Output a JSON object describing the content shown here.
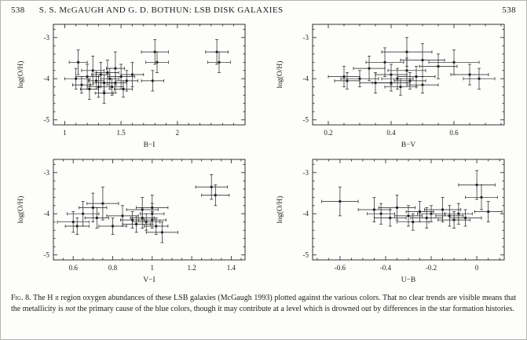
{
  "colors": {
    "ink": "#1c1c1c",
    "paper": "#fdfdfb"
  },
  "header": {
    "page_number_left": "538",
    "title": "S. S. McGAUGH AND G. D. BOTHUN: LSB DISK GALAXIES",
    "page_number_right": "538"
  },
  "caption": {
    "fig_label": "Fig. 8.",
    "part1": " The H ",
    "hii": "ii",
    "part2": " region oxygen abundances of these LSB galaxies (McGaugh 1993) plotted against the various colors. That no clear trends are visible means that the metallicity is ",
    "italic_word": "not",
    "part3": " the primary cause of the blue colors, though it may contribute at a level which is drowned out by differences in the star formation histories."
  },
  "chart_data": [
    {
      "type": "scatter",
      "xlabel": "B−I",
      "ylabel": "log(O/H)",
      "xlim": [
        0.9,
        2.6
      ],
      "ylim": [
        -5.12,
        -2.68
      ],
      "xticks": [
        1,
        1.5,
        2
      ],
      "xtick_labels": [
        "1",
        "1.5",
        "2"
      ],
      "yticks": [
        -5,
        -4,
        -3
      ],
      "ytick_labels": [
        "-5",
        "-4",
        "-3"
      ],
      "xminor_step": 0.1,
      "yminor_step": 0.2,
      "grid": false,
      "points": [
        [
          1.12,
          -3.6,
          0.08,
          0.3
        ],
        [
          1.1,
          -4.0,
          0.1,
          0.25
        ],
        [
          1.15,
          -4.15,
          0.08,
          0.2
        ],
        [
          1.2,
          -3.95,
          0.1,
          0.3
        ],
        [
          1.22,
          -4.25,
          0.08,
          0.25
        ],
        [
          1.25,
          -3.8,
          0.1,
          0.35
        ],
        [
          1.28,
          -4.05,
          0.07,
          0.2
        ],
        [
          1.3,
          -4.2,
          0.1,
          0.25
        ],
        [
          1.32,
          -3.9,
          0.08,
          0.3
        ],
        [
          1.35,
          -4.1,
          0.1,
          0.2
        ],
        [
          1.35,
          -4.35,
          0.08,
          0.25
        ],
        [
          1.38,
          -3.85,
          0.1,
          0.3
        ],
        [
          1.4,
          -4.0,
          0.08,
          0.25
        ],
        [
          1.42,
          -4.2,
          0.1,
          0.2
        ],
        [
          1.45,
          -3.75,
          0.08,
          0.4
        ],
        [
          1.45,
          -4.1,
          0.1,
          0.25
        ],
        [
          1.5,
          -3.95,
          0.12,
          0.3
        ],
        [
          1.52,
          -4.25,
          0.08,
          0.2
        ],
        [
          1.55,
          -4.05,
          0.1,
          0.25
        ],
        [
          1.6,
          -3.9,
          0.1,
          0.3
        ],
        [
          1.8,
          -3.35,
          0.12,
          0.3
        ],
        [
          1.82,
          -3.6,
          0.1,
          0.25
        ],
        [
          1.78,
          -4.05,
          0.1,
          0.25
        ],
        [
          2.35,
          -3.35,
          0.1,
          0.3
        ],
        [
          2.37,
          -3.6,
          0.1,
          0.25
        ]
      ]
    },
    {
      "type": "scatter",
      "xlabel": "B−V",
      "ylabel": "log(O/H)",
      "xlim": [
        0.15,
        0.76
      ],
      "ylim": [
        -5.12,
        -2.68
      ],
      "xticks": [
        0.2,
        0.4,
        0.6
      ],
      "xtick_labels": [
        "0.2",
        "0.4",
        "0.6"
      ],
      "yticks": [
        -5,
        -4,
        -3
      ],
      "ytick_labels": [
        "-5",
        "-4",
        "-3"
      ],
      "xminor_step": 0.05,
      "yminor_step": 0.2,
      "grid": false,
      "points": [
        [
          0.25,
          -3.95,
          0.05,
          0.25
        ],
        [
          0.26,
          -4.05,
          0.04,
          0.2
        ],
        [
          0.3,
          -4.0,
          0.06,
          0.2
        ],
        [
          0.33,
          -3.75,
          0.05,
          0.3
        ],
        [
          0.35,
          -4.1,
          0.05,
          0.25
        ],
        [
          0.38,
          -3.6,
          0.06,
          0.35
        ],
        [
          0.4,
          -3.9,
          0.05,
          0.25
        ],
        [
          0.4,
          -4.1,
          0.06,
          0.2
        ],
        [
          0.42,
          -4.0,
          0.05,
          0.25
        ],
        [
          0.43,
          -4.2,
          0.05,
          0.2
        ],
        [
          0.45,
          -3.35,
          0.08,
          0.35
        ],
        [
          0.45,
          -3.8,
          0.06,
          0.3
        ],
        [
          0.46,
          -4.05,
          0.05,
          0.2
        ],
        [
          0.48,
          -3.95,
          0.06,
          0.25
        ],
        [
          0.5,
          -3.55,
          0.07,
          0.4
        ],
        [
          0.5,
          -4.15,
          0.05,
          0.2
        ],
        [
          0.55,
          -3.7,
          0.06,
          0.3
        ],
        [
          0.6,
          -3.6,
          0.08,
          0.3
        ],
        [
          0.65,
          -3.9,
          0.06,
          0.25
        ],
        [
          0.68,
          -4.0,
          0.05,
          0.25
        ]
      ]
    },
    {
      "type": "scatter",
      "xlabel": "V−I",
      "ylabel": "log(O/H)",
      "xlim": [
        0.5,
        1.47
      ],
      "ylim": [
        -5.12,
        -2.68
      ],
      "xticks": [
        0.6,
        0.8,
        1,
        1.2,
        1.4
      ],
      "xtick_labels": [
        "0.6",
        "0.8",
        "1",
        "1.2",
        "1.4"
      ],
      "yticks": [
        -5,
        -4,
        -3
      ],
      "ytick_labels": [
        "-5",
        "-4",
        "-3"
      ],
      "xminor_step": 0.05,
      "yminor_step": 0.2,
      "grid": false,
      "points": [
        [
          0.6,
          -4.2,
          0.08,
          0.25
        ],
        [
          0.62,
          -4.3,
          0.06,
          0.2
        ],
        [
          0.65,
          -4.0,
          0.08,
          0.3
        ],
        [
          0.7,
          -3.85,
          0.07,
          0.35
        ],
        [
          0.72,
          -4.1,
          0.06,
          0.25
        ],
        [
          0.75,
          -3.75,
          0.08,
          0.4
        ],
        [
          0.8,
          -4.3,
          0.07,
          0.2
        ],
        [
          0.85,
          -4.05,
          0.08,
          0.25
        ],
        [
          0.9,
          -4.15,
          0.06,
          0.2
        ],
        [
          0.92,
          -4.25,
          0.07,
          0.2
        ],
        [
          0.95,
          -3.9,
          0.08,
          0.3
        ],
        [
          0.95,
          -4.1,
          0.06,
          0.25
        ],
        [
          0.97,
          -4.2,
          0.07,
          0.2
        ],
        [
          1.0,
          -3.85,
          0.08,
          0.3
        ],
        [
          1.0,
          -4.0,
          0.06,
          0.25
        ],
        [
          1.0,
          -4.15,
          0.07,
          0.2
        ],
        [
          1.02,
          -4.3,
          0.06,
          0.2
        ],
        [
          1.05,
          -4.45,
          0.08,
          0.25
        ],
        [
          1.3,
          -3.35,
          0.08,
          0.3
        ],
        [
          1.32,
          -3.55,
          0.07,
          0.25
        ]
      ]
    },
    {
      "type": "scatter",
      "xlabel": "U−B",
      "ylabel": "log(O/H)",
      "xlim": [
        -0.72,
        0.12
      ],
      "ylim": [
        -5.12,
        -2.68
      ],
      "xticks": [
        -0.6,
        -0.4,
        -0.2,
        0
      ],
      "xtick_labels": [
        "-0.6",
        "-0.4",
        "-0.2",
        "0"
      ],
      "yticks": [
        -5,
        -4,
        -3
      ],
      "ytick_labels": [
        "-5",
        "-4",
        "-3"
      ],
      "xminor_step": 0.05,
      "yminor_step": 0.2,
      "grid": false,
      "points": [
        [
          -0.6,
          -3.7,
          0.08,
          0.35
        ],
        [
          -0.45,
          -3.9,
          0.07,
          0.3
        ],
        [
          -0.42,
          -4.0,
          0.06,
          0.25
        ],
        [
          -0.38,
          -4.1,
          0.07,
          0.2
        ],
        [
          -0.35,
          -3.85,
          0.08,
          0.3
        ],
        [
          -0.3,
          -4.05,
          0.06,
          0.25
        ],
        [
          -0.28,
          -4.2,
          0.07,
          0.2
        ],
        [
          -0.25,
          -3.95,
          0.06,
          0.25
        ],
        [
          -0.22,
          -4.1,
          0.07,
          0.25
        ],
        [
          -0.2,
          -4.0,
          0.06,
          0.2
        ],
        [
          -0.15,
          -3.9,
          0.08,
          0.3
        ],
        [
          -0.12,
          -4.05,
          0.06,
          0.25
        ],
        [
          -0.1,
          -4.15,
          0.07,
          0.2
        ],
        [
          -0.08,
          -4.0,
          0.06,
          0.25
        ],
        [
          -0.05,
          -4.1,
          0.07,
          0.2
        ],
        [
          0.0,
          -3.3,
          0.08,
          0.35
        ],
        [
          0.02,
          -3.6,
          0.07,
          0.3
        ],
        [
          0.05,
          -3.95,
          0.06,
          0.25
        ]
      ]
    }
  ]
}
